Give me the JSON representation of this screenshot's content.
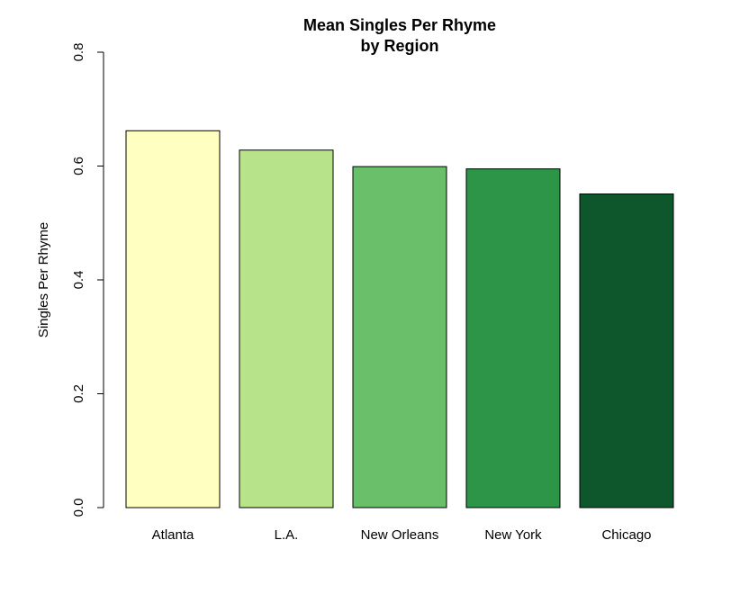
{
  "chart_data": {
    "type": "bar",
    "title_line1": "Mean Singles Per Rhyme",
    "title_line2": "by Region",
    "xlabel": "",
    "ylabel": "Singles Per Rhyme",
    "categories": [
      "Atlanta",
      "L.A.",
      "New Orleans",
      "New York",
      "Chicago"
    ],
    "values": [
      0.662,
      0.628,
      0.599,
      0.595,
      0.551
    ],
    "colors": [
      "#FFFFC2",
      "#B7E48B",
      "#6ABF6A",
      "#2D9548",
      "#0E572D"
    ],
    "ylim": [
      0,
      0.8
    ],
    "yticks": [
      "0.0",
      "0.2",
      "0.4",
      "0.6",
      "0.8"
    ],
    "grid": false,
    "legend": "none"
  }
}
